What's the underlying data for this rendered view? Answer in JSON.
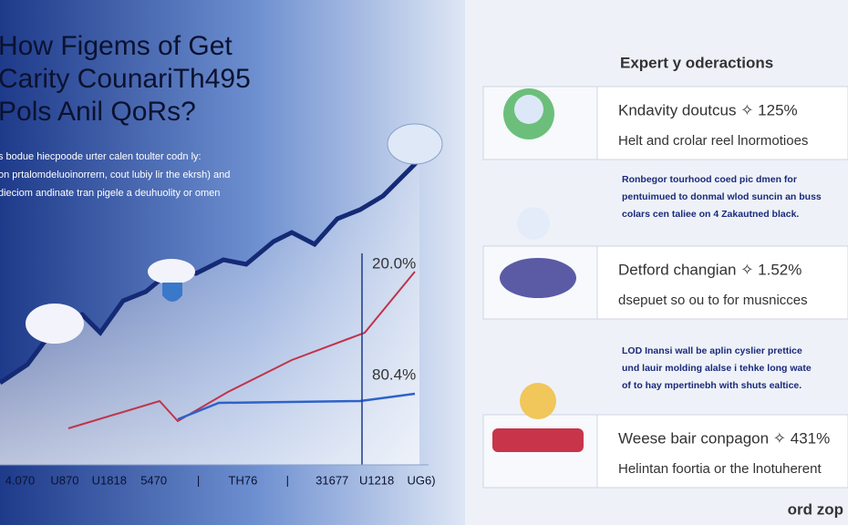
{
  "header": {
    "title_lines": [
      "How Figems of Get",
      "Carity CounariTh495",
      "Pols Anil QoRs?"
    ],
    "intro_lines": [
      "s bodue hiecpoode urter calen toulter codn ly:",
      "on prtalomdeluoinorrern, cout lubiy lir the ekrsh) and",
      "dieciom andinate tran pigele a deuhuolity or omen"
    ]
  },
  "chart": {
    "annotations": [
      "20.0%",
      "80.4%"
    ],
    "x_labels": [
      "4.070",
      "U870",
      "U1818",
      "5470",
      "|",
      "TH76",
      "|",
      "31677",
      "U1218",
      "UG6)"
    ]
  },
  "panel": {
    "heading": "Expert y oderactions",
    "cards": [
      {
        "title": "Kndavity doutcus ✧ 125%",
        "text": "Helt and crolar reel lnormotioes"
      },
      {
        "title": "Detford changian ✧ 1.52%",
        "text": "dsepuet so ou to for musnicces"
      },
      {
        "title": "Weese bair conpagon ✧ 431%",
        "text": "Helintan foortia or the lnotuherent"
      }
    ],
    "notes": [
      [
        "Ronbegor tourhood coed pic dmen for",
        "pentuimued to donmal wlod suncin an buss",
        "colars cen taliee on 4 Zakautned black."
      ],
      [
        "LOD Inansi wall be aplin cyslier prettice",
        "und lauir molding alalse i tehke long wate",
        "of to hay mpertinebh with shuts ealtice."
      ]
    ]
  },
  "footer": {
    "brand": "ord zop"
  }
}
